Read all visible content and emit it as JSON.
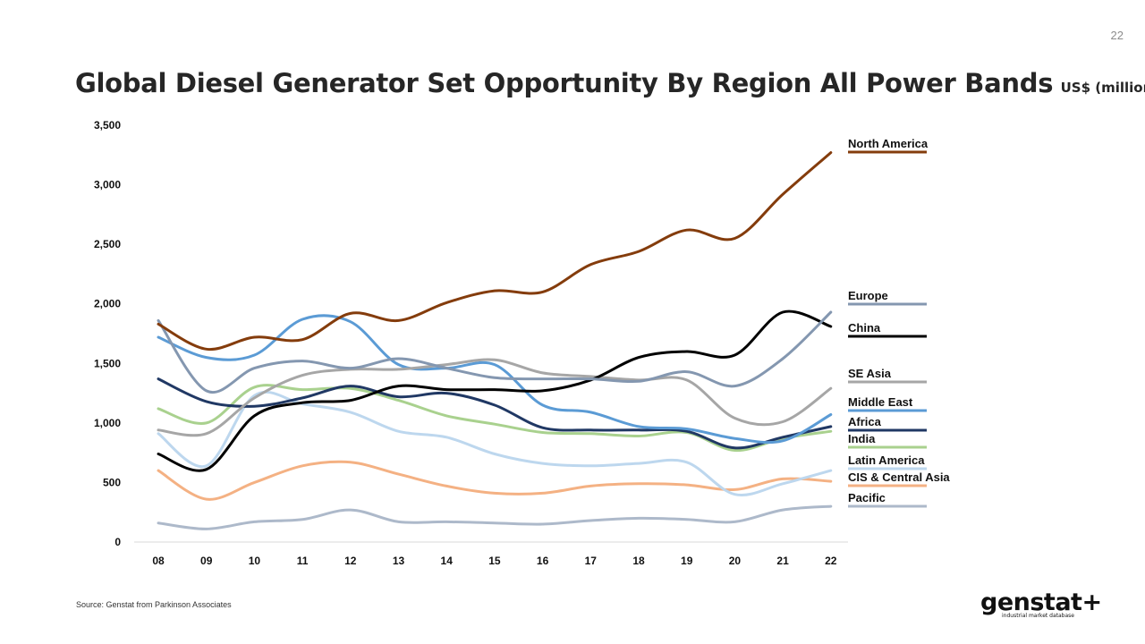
{
  "page": {
    "number": "22"
  },
  "title": {
    "main": "Global Diesel Generator Set Opportunity By Region All Power Bands",
    "units": "US$ (millions)"
  },
  "source": "Source: Genstat from Parkinson Associates",
  "logo": {
    "wordmark": "genstat+",
    "tagline": "industrial market database"
  },
  "chart_data": {
    "type": "line",
    "categories": [
      "08",
      "09",
      "10",
      "11",
      "12",
      "13",
      "14",
      "15",
      "16",
      "17",
      "18",
      "19",
      "20",
      "21",
      "22"
    ],
    "ylim": [
      0,
      3500
    ],
    "yticks": [
      0,
      500,
      1000,
      1500,
      2000,
      2500,
      3000,
      3500
    ],
    "ytick_labels": [
      "0",
      "500",
      "1,000",
      "1,500",
      "2,000",
      "2,500",
      "3,000",
      "3,500"
    ],
    "grid": false,
    "legend_position": "right, labels beside line ends",
    "series": [
      {
        "name": "North America",
        "color": "#843c0c",
        "values": [
          1830,
          1620,
          1720,
          1700,
          1920,
          1860,
          2010,
          2110,
          2100,
          2330,
          2440,
          2620,
          2550,
          2920,
          3270
        ]
      },
      {
        "name": "Europe",
        "color": "#8497b0",
        "values": [
          1860,
          1270,
          1460,
          1520,
          1460,
          1540,
          1460,
          1380,
          1370,
          1370,
          1350,
          1430,
          1310,
          1540,
          1930
        ]
      },
      {
        "name": "China",
        "color": "#000000",
        "values": [
          740,
          610,
          1060,
          1170,
          1190,
          1310,
          1280,
          1280,
          1270,
          1360,
          1550,
          1600,
          1570,
          1930,
          1810
        ]
      },
      {
        "name": "SE Asia",
        "color": "#a6a6a6",
        "values": [
          940,
          910,
          1210,
          1400,
          1450,
          1450,
          1490,
          1530,
          1420,
          1390,
          1360,
          1360,
          1040,
          1010,
          1290
        ]
      },
      {
        "name": "Middle East",
        "color": "#5b9bd5",
        "values": [
          1720,
          1550,
          1570,
          1870,
          1850,
          1490,
          1460,
          1490,
          1150,
          1090,
          970,
          950,
          870,
          850,
          1070
        ]
      },
      {
        "name": "Africa",
        "color": "#203864",
        "values": [
          1370,
          1180,
          1140,
          1210,
          1310,
          1220,
          1250,
          1150,
          960,
          940,
          940,
          930,
          790,
          880,
          970
        ]
      },
      {
        "name": "India",
        "color": "#a9d18e",
        "values": [
          1120,
          1000,
          1300,
          1280,
          1290,
          1190,
          1060,
          990,
          920,
          910,
          890,
          920,
          770,
          870,
          930
        ]
      },
      {
        "name": "Latin America",
        "color": "#bdd7ee",
        "values": [
          910,
          640,
          1230,
          1160,
          1090,
          930,
          880,
          740,
          660,
          640,
          660,
          670,
          400,
          490,
          600
        ]
      },
      {
        "name": "CIS & Central Asia",
        "color": "#f4b183",
        "values": [
          600,
          360,
          500,
          640,
          670,
          570,
          470,
          410,
          410,
          470,
          490,
          480,
          440,
          530,
          510
        ]
      },
      {
        "name": "Pacific",
        "color": "#adb9ca",
        "values": [
          160,
          110,
          170,
          190,
          270,
          170,
          170,
          160,
          150,
          180,
          200,
          190,
          170,
          270,
          300
        ]
      }
    ]
  }
}
